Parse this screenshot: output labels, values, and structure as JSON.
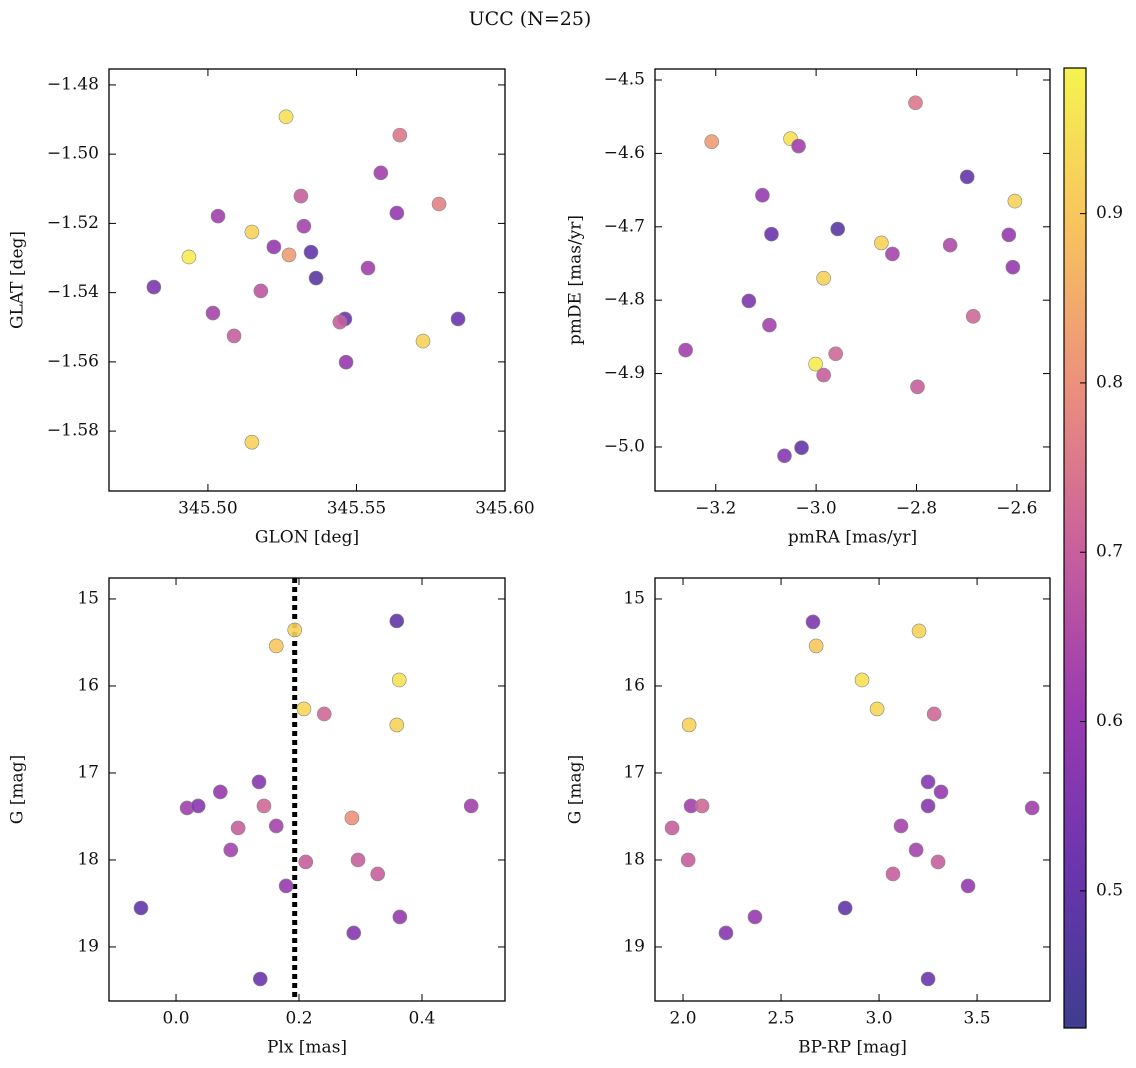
{
  "title": "UCC (N=25)",
  "colorbar": {
    "lim": [
      0.419,
      0.986
    ],
    "ticks": [
      0.5,
      0.6,
      0.7,
      0.8,
      0.9
    ],
    "colormap": [
      "#3f3d8f",
      "#6a35ad",
      "#9b3bb0",
      "#c8609c",
      "#eb8f7c",
      "#f8c25e",
      "#f5f350"
    ]
  },
  "chart_data": [
    {
      "type": "scatter",
      "xlabel": "GLON [deg]",
      "ylabel": "GLAT [deg]",
      "xlim": [
        345.4667,
        345.6
      ],
      "ylim": [
        -1.5973,
        -1.4754
      ],
      "xticks": [
        {
          "value": 345.5,
          "label": "345.50"
        },
        345.55,
        {
          "value": 345.6,
          "label": "345.60"
        }
      ],
      "yticks": [
        {
          "value": -1.48,
          "label": "−1.48"
        },
        {
          "value": -1.5,
          "label": "−1.50"
        },
        {
          "value": -1.52,
          "label": "−1.52"
        },
        {
          "value": -1.54,
          "label": "−1.54"
        },
        {
          "value": -1.56,
          "label": "−1.56"
        },
        {
          "value": -1.58,
          "label": "−1.58"
        }
      ],
      "x": [
        345.5263,
        345.5646,
        345.5582,
        345.5313,
        345.5778,
        345.5636,
        345.5034,
        345.5323,
        345.5148,
        345.4936,
        345.5273,
        345.5222,
        345.5347,
        345.5364,
        345.4818,
        345.5178,
        345.5539,
        345.5017,
        345.5461,
        345.5444,
        345.5842,
        345.5088,
        345.5724,
        345.5465,
        345.5148
      ],
      "values": [
        -1.4892,
        -1.4945,
        -1.5054,
        -1.5121,
        -1.5144,
        -1.517,
        -1.5179,
        -1.5208,
        -1.5225,
        -1.5297,
        -1.5291,
        -1.5268,
        -1.5283,
        -1.5358,
        -1.5384,
        -1.5395,
        -1.5329,
        -1.5459,
        -1.5476,
        -1.5485,
        -1.5476,
        -1.5525,
        -1.554,
        -1.5601,
        -1.5832
      ],
      "color_values": [
        0.95,
        0.75,
        0.62,
        0.7,
        0.77,
        0.6,
        0.62,
        0.63,
        0.92,
        0.97,
        0.82,
        0.6,
        0.5,
        0.48,
        0.55,
        0.68,
        0.62,
        0.63,
        0.52,
        0.7,
        0.52,
        0.7,
        0.92,
        0.6,
        0.92
      ]
    },
    {
      "type": "scatter",
      "xlabel": "pmRA [mas/yr]",
      "ylabel": "pmDE [mas/yr]",
      "xlim": [
        -3.321,
        -2.534
      ],
      "ylim": [
        -5.06,
        -4.485
      ],
      "xticks": [
        {
          "value": -3.2,
          "label": "−3.2"
        },
        {
          "value": -3.0,
          "label": "−3.0"
        },
        {
          "value": -2.8,
          "label": "−2.8"
        },
        {
          "value": -2.6,
          "label": "−2.6"
        }
      ],
      "yticks": [
        {
          "value": -4.5,
          "label": "−4.5"
        },
        {
          "value": -4.6,
          "label": "−4.6"
        },
        {
          "value": -4.7,
          "label": "−4.7"
        },
        {
          "value": -4.8,
          "label": "−4.8"
        },
        {
          "value": -4.9,
          "label": "−4.9"
        },
        {
          "value": -5.0,
          "label": "−5.0"
        }
      ],
      "x": [
        -2.802,
        -3.208,
        -3.051,
        -3.035,
        -2.604,
        -2.699,
        -3.107,
        -2.957,
        -3.089,
        -2.87,
        -2.848,
        -2.733,
        -2.616,
        -2.608,
        -2.985,
        -3.134,
        -2.687,
        -3.093,
        -3.26,
        -2.961,
        -3.001,
        -2.985,
        -2.798,
        -3.029,
        -3.063
      ],
      "values": [
        -4.531,
        -4.584,
        -4.58,
        -4.59,
        -4.665,
        -4.632,
        -4.657,
        -4.703,
        -4.71,
        -4.722,
        -4.737,
        -4.725,
        -4.711,
        -4.755,
        -4.77,
        -4.801,
        -4.822,
        -4.834,
        -4.868,
        -4.873,
        -4.887,
        -4.902,
        -4.918,
        -5.001,
        -5.012
      ],
      "color_values": [
        0.75,
        0.82,
        0.95,
        0.62,
        0.92,
        0.5,
        0.6,
        0.48,
        0.52,
        0.92,
        0.63,
        0.65,
        0.6,
        0.6,
        0.92,
        0.55,
        0.72,
        0.63,
        0.62,
        0.72,
        0.97,
        0.7,
        0.7,
        0.5,
        0.57
      ]
    },
    {
      "type": "scatter",
      "xlabel": "Plx [mas]",
      "ylabel": "G [mag]",
      "invert_y": true,
      "xlim": [
        -0.109,
        0.535
      ],
      "ylim": [
        14.759,
        19.621
      ],
      "vline": 0.193,
      "xticks": [
        {
          "value": 0.0,
          "label": "0.0"
        },
        0.2,
        0.4
      ],
      "yticks": [
        15,
        16,
        17,
        18,
        19
      ],
      "x": [
        0.193,
        0.163,
        0.359,
        0.363,
        0.208,
        0.241,
        0.359,
        0.135,
        0.072,
        0.018,
        0.036,
        0.143,
        0.48,
        0.286,
        0.101,
        0.163,
        0.089,
        0.211,
        0.296,
        0.328,
        0.179,
        -0.057,
        0.364,
        0.289,
        0.137
      ],
      "values": [
        15.356,
        15.54,
        15.253,
        15.931,
        16.264,
        16.322,
        16.448,
        17.103,
        17.218,
        17.402,
        17.379,
        17.379,
        17.379,
        17.517,
        17.632,
        17.609,
        17.885,
        18.023,
        18.0,
        18.161,
        18.299,
        18.552,
        18.655,
        18.839,
        19.368
      ],
      "color_values": [
        0.92,
        0.9,
        0.5,
        0.95,
        0.93,
        0.72,
        0.92,
        0.57,
        0.6,
        0.62,
        0.57,
        0.72,
        0.62,
        0.8,
        0.7,
        0.63,
        0.63,
        0.7,
        0.7,
        0.7,
        0.6,
        0.5,
        0.6,
        0.57,
        0.52
      ]
    },
    {
      "type": "scatter",
      "xlabel": "BP-RP [mag]",
      "ylabel": "G [mag]",
      "invert_y": true,
      "xlim": [
        1.857,
        3.872
      ],
      "ylim": [
        14.759,
        19.621
      ],
      "xticks": [
        {
          "value": 2.0,
          "label": "2.0"
        },
        2.5,
        {
          "value": 3.0,
          "label": "3.0"
        },
        3.5
      ],
      "yticks": [
        15,
        16,
        17,
        18,
        19
      ],
      "x": [
        2.663,
        3.204,
        2.679,
        2.913,
        2.99,
        3.281,
        2.031,
        3.25,
        3.316,
        2.041,
        2.097,
        3.25,
        3.781,
        1.944,
        3.112,
        3.189,
        2.026,
        3.301,
        3.071,
        3.454,
        2.827,
        2.367,
        2.219,
        3.25
      ],
      "values": [
        15.264,
        15.368,
        15.54,
        15.931,
        16.264,
        16.322,
        16.448,
        17.103,
        17.218,
        17.379,
        17.379,
        17.379,
        17.402,
        17.632,
        17.609,
        17.885,
        18.0,
        18.023,
        18.161,
        18.299,
        18.552,
        18.655,
        18.839,
        19.368
      ],
      "color_values": [
        0.55,
        0.92,
        0.9,
        0.95,
        0.93,
        0.72,
        0.92,
        0.57,
        0.6,
        0.62,
        0.72,
        0.57,
        0.62,
        0.7,
        0.63,
        0.63,
        0.7,
        0.7,
        0.7,
        0.6,
        0.5,
        0.6,
        0.57,
        0.52
      ]
    }
  ]
}
